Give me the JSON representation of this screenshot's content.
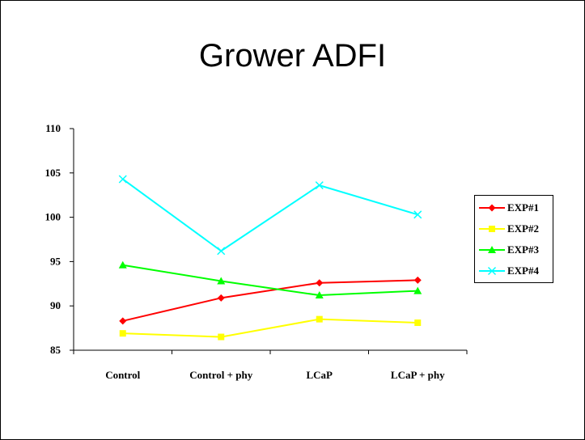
{
  "chart_data": {
    "type": "line",
    "title": "Grower ADFI",
    "xlabel": "",
    "ylabel": "",
    "categories": [
      "Control",
      "Control + phy",
      "LCaP",
      "LCaP + phy"
    ],
    "ylim": [
      85,
      110
    ],
    "yticks": [
      "85",
      "90",
      "95",
      "100",
      "105",
      "110"
    ],
    "grid": false,
    "legend_position": "right",
    "series": [
      {
        "name": "EXP#1",
        "color": "#FF0000",
        "marker": "diamond",
        "values": [
          88.3,
          90.9,
          92.6,
          92.9
        ]
      },
      {
        "name": "EXP#2",
        "color": "#FFFF00",
        "marker": "square",
        "values": [
          86.9,
          86.5,
          88.5,
          88.1
        ]
      },
      {
        "name": "EXP#3",
        "color": "#00FF00",
        "marker": "triangle",
        "values": [
          94.6,
          92.8,
          91.2,
          91.7
        ]
      },
      {
        "name": "EXP#4",
        "color": "#00FFFF",
        "marker": "x",
        "values": [
          104.3,
          96.2,
          103.6,
          100.3
        ]
      }
    ]
  }
}
